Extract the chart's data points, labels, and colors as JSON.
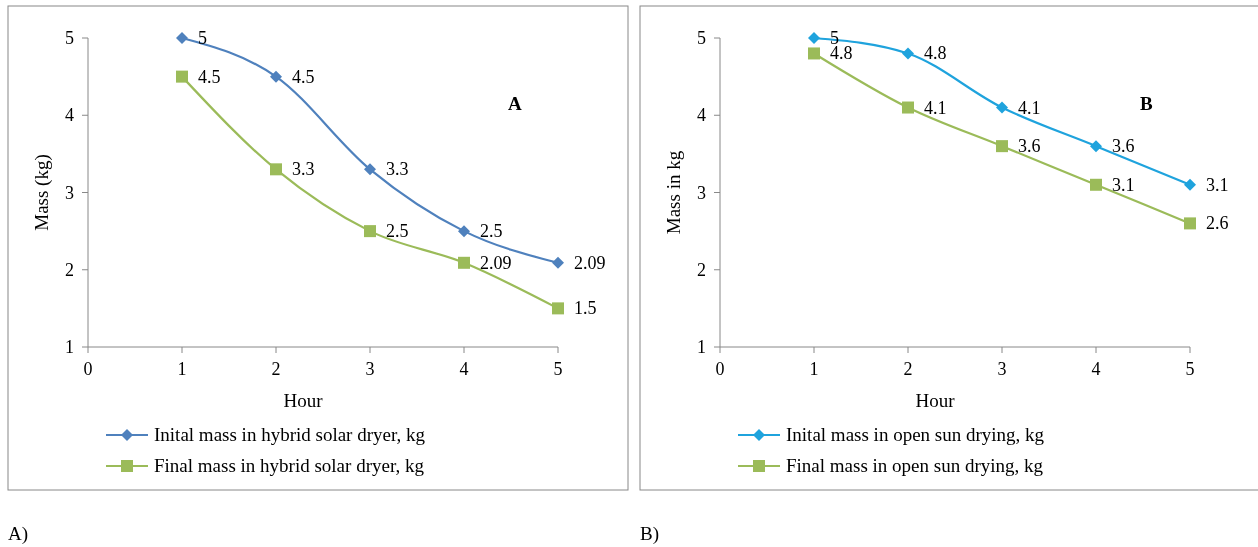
{
  "chart_data": [
    {
      "type": "line",
      "xlabel": "Hour",
      "ylabel": "Mass (kg)",
      "x": [
        1,
        2,
        3,
        4,
        5
      ],
      "xlim": [
        0,
        5
      ],
      "xticks": [
        0,
        1,
        2,
        3,
        4,
        5
      ],
      "ylim": [
        1,
        5
      ],
      "yticks": [
        1,
        2,
        3,
        4,
        5
      ],
      "legend": "bottom",
      "data_labels": true,
      "annotations": [
        "A",
        "A)"
      ],
      "series": [
        {
          "name": "Inital mass in hybrid solar dryer, kg",
          "color": "#4f81bd",
          "marker": "diamond",
          "values": [
            5,
            4.5,
            3.3,
            2.5,
            2.09
          ]
        },
        {
          "name": "Final mass in hybrid solar dryer, kg",
          "color": "#9bbb59",
          "marker": "square",
          "values": [
            4.5,
            3.3,
            2.5,
            2.09,
            1.5
          ]
        }
      ]
    },
    {
      "type": "line",
      "xlabel": "Hour",
      "ylabel": "Mass in kg",
      "x": [
        1,
        2,
        3,
        4,
        5
      ],
      "xlim": [
        0,
        5
      ],
      "xticks": [
        0,
        1,
        2,
        3,
        4,
        5
      ],
      "ylim": [
        1,
        5
      ],
      "yticks": [
        1,
        2,
        3,
        4,
        5
      ],
      "legend": "bottom",
      "data_labels": true,
      "annotations": [
        "B",
        "B)"
      ],
      "series": [
        {
          "name": "Inital mass in open sun drying, kg",
          "color": "#1fa3dd",
          "marker": "diamond",
          "values": [
            5,
            4.8,
            4.1,
            3.6,
            3.1
          ]
        },
        {
          "name": "Final mass in open sun drying, kg",
          "color": "#9bbb59",
          "marker": "square",
          "values": [
            4.8,
            4.1,
            3.6,
            3.1,
            2.6
          ]
        }
      ]
    }
  ]
}
